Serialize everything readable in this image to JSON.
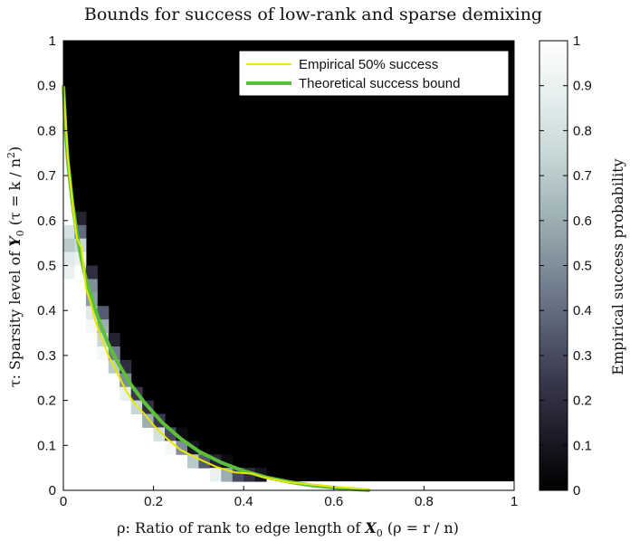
{
  "chart_data": {
    "type": "heatmap",
    "title": "Bounds for success of low-rank and sparse demixing",
    "xlabel": {
      "prefix": "ρ: Ratio of rank to edge length of ",
      "sym": "X",
      "sub": "0",
      "suffix": " (ρ = r / n)"
    },
    "ylabel": {
      "prefix": "τ: Sparsity level of ",
      "sym": "Y",
      "sub": "0",
      "suffix": " (τ = k / n",
      "sup": "2",
      "end": ")"
    },
    "colorbar_label": "Empirical success probability",
    "xlim": [
      0,
      1
    ],
    "ylim": [
      0,
      1
    ],
    "x_ticks": [
      "0",
      "0.2",
      "0.4",
      "0.6",
      "0.8",
      "1"
    ],
    "y_ticks": [
      "0",
      "0.1",
      "0.2",
      "0.3",
      "0.4",
      "0.5",
      "0.6",
      "0.7",
      "0.8",
      "0.9",
      "1"
    ],
    "colorbar_ticks": [
      "0",
      "0.1",
      "0.2",
      "0.3",
      "0.4",
      "0.5",
      "0.6",
      "0.7",
      "0.8",
      "0.9",
      "1"
    ],
    "colormap": [
      "#000000",
      "#1c1c28",
      "#3a3a4e",
      "#5c6478",
      "#7f8e9a",
      "#a3b6b8",
      "#c8d8d8",
      "#e6eeee",
      "#ffffff"
    ],
    "grid": false,
    "legend_position": "top-right",
    "legend": [
      {
        "label": "Empirical 50% success",
        "color": "#e8e800"
      },
      {
        "label": "Theoretical success bound",
        "color": "#5cbf3a"
      }
    ],
    "series": [
      {
        "name": "Empirical 50% success",
        "x": [
          0,
          0.01,
          0.02,
          0.03,
          0.04,
          0.05,
          0.06,
          0.07,
          0.08,
          0.1,
          0.12,
          0.14,
          0.16,
          0.18,
          0.2,
          0.23,
          0.26,
          0.3,
          0.34,
          0.38,
          0.42,
          0.44,
          0.5,
          0.6,
          0.68
        ],
        "y": [
          0.9,
          0.74,
          0.64,
          0.56,
          0.54,
          0.45,
          0.42,
          0.38,
          0.35,
          0.3,
          0.26,
          0.22,
          0.19,
          0.17,
          0.145,
          0.115,
          0.09,
          0.07,
          0.052,
          0.04,
          0.037,
          0.03,
          0.018,
          0.008,
          0.002
        ]
      },
      {
        "name": "Theoretical success bound",
        "x": [
          0,
          0.005,
          0.01,
          0.02,
          0.03,
          0.04,
          0.05,
          0.06,
          0.08,
          0.1,
          0.12,
          0.15,
          0.18,
          0.22,
          0.26,
          0.3,
          0.35,
          0.4,
          0.45,
          0.5,
          0.55,
          0.6,
          0.65,
          0.68
        ],
        "y": [
          0.9,
          0.8,
          0.73,
          0.64,
          0.57,
          0.515,
          0.47,
          0.435,
          0.375,
          0.325,
          0.285,
          0.235,
          0.195,
          0.15,
          0.115,
          0.087,
          0.062,
          0.043,
          0.029,
          0.019,
          0.011,
          0.006,
          0.002,
          0
        ]
      }
    ],
    "heatmap_cells": [
      {
        "x": 0.0,
        "y": 0.56,
        "v": 0.8
      },
      {
        "x": 0.0,
        "y": 0.53,
        "v": 0.7
      },
      {
        "x": 0.0,
        "y": 0.5,
        "v": 0.85
      },
      {
        "x": 0.0,
        "y": 0.47,
        "v": 0.9
      },
      {
        "x": 0.0,
        "y": 0.44,
        "v": 1
      },
      {
        "x": 0.0,
        "y": 0.41,
        "v": 1
      },
      {
        "x": 0.0,
        "y": 0.38,
        "v": 1
      },
      {
        "x": 0.0,
        "y": 0.35,
        "v": 1
      },
      {
        "x": 0.0,
        "y": 0.32,
        "v": 1
      },
      {
        "x": 0.0,
        "y": 0.29,
        "v": 1
      },
      {
        "x": 0.0,
        "y": 0.26,
        "v": 1
      },
      {
        "x": 0.0,
        "y": 0.23,
        "v": 1
      },
      {
        "x": 0.0,
        "y": 0.2,
        "v": 1
      },
      {
        "x": 0.0,
        "y": 0.17,
        "v": 1
      },
      {
        "x": 0.0,
        "y": 0.14,
        "v": 1
      },
      {
        "x": 0.0,
        "y": 0.11,
        "v": 1
      },
      {
        "x": 0.0,
        "y": 0.08,
        "v": 1
      },
      {
        "x": 0.0,
        "y": 0.05,
        "v": 1
      },
      {
        "x": 0.0,
        "y": 0.02,
        "v": 1
      },
      {
        "x": 0.025,
        "y": 0.59,
        "v": 0.15
      },
      {
        "x": 0.025,
        "y": 0.56,
        "v": 0.4
      },
      {
        "x": 0.025,
        "y": 0.53,
        "v": 0.75
      },
      {
        "x": 0.025,
        "y": 0.5,
        "v": 0.9
      },
      {
        "x": 0.025,
        "y": 0.47,
        "v": 1
      },
      {
        "x": 0.05,
        "y": 0.47,
        "v": 0.2
      },
      {
        "x": 0.05,
        "y": 0.44,
        "v": 0.5
      },
      {
        "x": 0.05,
        "y": 0.41,
        "v": 0.55
      },
      {
        "x": 0.05,
        "y": 0.38,
        "v": 0.85
      },
      {
        "x": 0.05,
        "y": 0.35,
        "v": 0.95
      },
      {
        "x": 0.075,
        "y": 0.38,
        "v": 0.35
      },
      {
        "x": 0.075,
        "y": 0.35,
        "v": 0.6
      },
      {
        "x": 0.075,
        "y": 0.32,
        "v": 0.75
      },
      {
        "x": 0.075,
        "y": 0.29,
        "v": 0.95
      },
      {
        "x": 0.1,
        "y": 0.32,
        "v": 0.15
      },
      {
        "x": 0.1,
        "y": 0.29,
        "v": 0.45
      },
      {
        "x": 0.1,
        "y": 0.26,
        "v": 0.7
      },
      {
        "x": 0.1,
        "y": 0.23,
        "v": 1
      },
      {
        "x": 0.125,
        "y": 0.26,
        "v": 0.2
      },
      {
        "x": 0.125,
        "y": 0.23,
        "v": 0.5
      },
      {
        "x": 0.125,
        "y": 0.2,
        "v": 0.9
      },
      {
        "x": 0.15,
        "y": 0.2,
        "v": 0.25
      },
      {
        "x": 0.15,
        "y": 0.17,
        "v": 0.75
      },
      {
        "x": 0.175,
        "y": 0.17,
        "v": 0.2
      },
      {
        "x": 0.175,
        "y": 0.14,
        "v": 0.6
      },
      {
        "x": 0.2,
        "y": 0.14,
        "v": 0.25
      },
      {
        "x": 0.2,
        "y": 0.11,
        "v": 0.8
      },
      {
        "x": 0.225,
        "y": 0.11,
        "v": 0.3
      },
      {
        "x": 0.225,
        "y": 0.08,
        "v": 0.95
      },
      {
        "x": 0.25,
        "y": 0.11,
        "v": 0.05
      },
      {
        "x": 0.25,
        "y": 0.08,
        "v": 0.5
      },
      {
        "x": 0.275,
        "y": 0.08,
        "v": 0.1
      },
      {
        "x": 0.275,
        "y": 0.05,
        "v": 0.7
      },
      {
        "x": 0.3,
        "y": 0.05,
        "v": 0.35
      },
      {
        "x": 0.325,
        "y": 0.05,
        "v": 0.15
      },
      {
        "x": 0.325,
        "y": 0.02,
        "v": 0.9
      },
      {
        "x": 0.35,
        "y": 0.05,
        "v": 0.05
      },
      {
        "x": 0.35,
        "y": 0.02,
        "v": 0.6
      },
      {
        "x": 0.375,
        "y": 0.02,
        "v": 0.3
      },
      {
        "x": 0.4,
        "y": 0.02,
        "v": 0.2
      },
      {
        "x": 0.425,
        "y": 0.02,
        "v": 0.1
      }
    ]
  }
}
